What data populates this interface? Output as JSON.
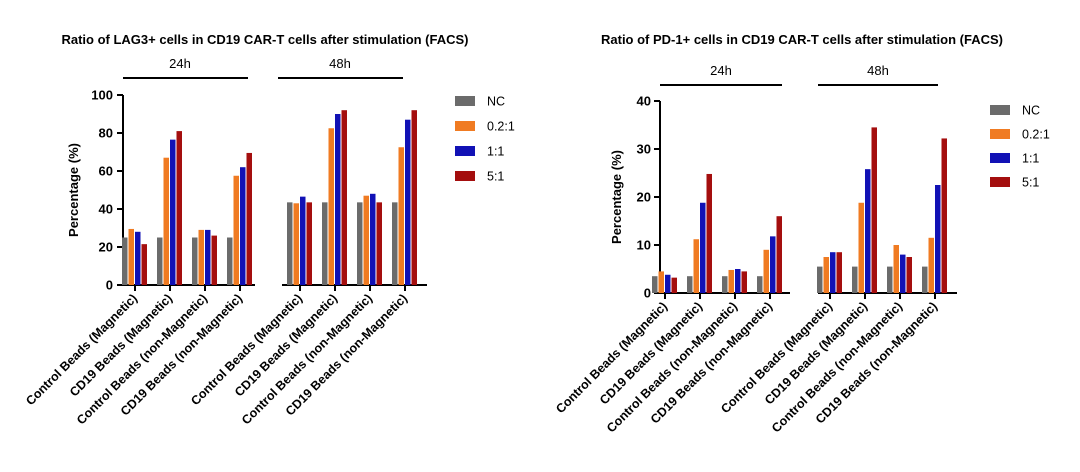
{
  "colors": {
    "NC": "#6b6b6b",
    "0.2:1": "#f07b22",
    "1:1": "#1111b5",
    "5:1": "#a40e0e"
  },
  "chart_data": [
    {
      "type": "bar",
      "title": "Ratio of LAG3+ cells in CD19 CAR-T cells after stimulation  (FACS)",
      "ylabel": "Percentage (%)",
      "ylim": [
        0,
        100
      ],
      "yticks": [
        0,
        20,
        40,
        60,
        80,
        100
      ],
      "groups": [
        {
          "label": "24h",
          "categories": [
            0,
            1,
            2,
            3
          ]
        },
        {
          "label": "48h",
          "categories": [
            4,
            5,
            6,
            7
          ]
        }
      ],
      "categories": [
        "Control Beads (Magnetic)",
        "CD19 Beads (Magnetic)",
        "Control Beads (non-Magnetic)",
        "CD19 Beads (non-Magnetic)",
        "Control Beads (Magnetic)",
        "CD19 Beads (Magnetic)",
        "Control Beads (non-Magnetic)",
        "CD19 Beads (non-Magnetic)"
      ],
      "series": [
        {
          "name": "NC",
          "values": [
            25,
            25,
            25,
            25,
            43.5,
            43.5,
            43.5,
            43.5
          ]
        },
        {
          "name": "0.2:1",
          "values": [
            29.5,
            67,
            29,
            57.5,
            43,
            82.5,
            47,
            72.5
          ]
        },
        {
          "name": "1:1",
          "values": [
            28,
            76.5,
            29,
            62,
            46.5,
            90,
            48,
            87
          ]
        },
        {
          "name": "5:1",
          "values": [
            21.5,
            81,
            26,
            69.5,
            43.5,
            92,
            43.5,
            92
          ]
        }
      ],
      "legend": [
        "NC",
        "0.2:1",
        "1:1",
        "5:1"
      ]
    },
    {
      "type": "bar",
      "title": "Ratio of PD-1+ cells in CD19 CAR-T cells after stimulation  (FACS)",
      "ylabel": "Percentage (%)",
      "ylim": [
        0,
        40
      ],
      "yticks": [
        0,
        10,
        20,
        30,
        40
      ],
      "groups": [
        {
          "label": "24h",
          "categories": [
            0,
            1,
            2,
            3
          ]
        },
        {
          "label": "48h",
          "categories": [
            4,
            5,
            6,
            7
          ]
        }
      ],
      "categories": [
        "Control Beads (Magnetic)",
        "CD19 Beads (Magnetic)",
        "Control Beads (non-Magnetic)",
        "CD19 Beads (non-Magnetic)",
        "Control Beads (Magnetic)",
        "CD19 Beads (Magnetic)",
        "Control Beads (non-Magnetic)",
        "CD19 Beads (non-Magnetic)"
      ],
      "series": [
        {
          "name": "NC",
          "values": [
            3.5,
            3.5,
            3.5,
            3.5,
            5.5,
            5.5,
            5.5,
            5.5
          ]
        },
        {
          "name": "0.2:1",
          "values": [
            4.5,
            11.2,
            4.8,
            9,
            7.5,
            18.8,
            10,
            11.5
          ]
        },
        {
          "name": "1:1",
          "values": [
            3.8,
            18.8,
            5,
            11.8,
            8.5,
            25.8,
            8,
            22.5
          ]
        },
        {
          "name": "5:1",
          "values": [
            3.2,
            24.8,
            4.5,
            16,
            8.5,
            34.5,
            7.5,
            32.2
          ]
        }
      ],
      "legend": [
        "NC",
        "0.2:1",
        "1:1",
        "5:1"
      ]
    }
  ]
}
